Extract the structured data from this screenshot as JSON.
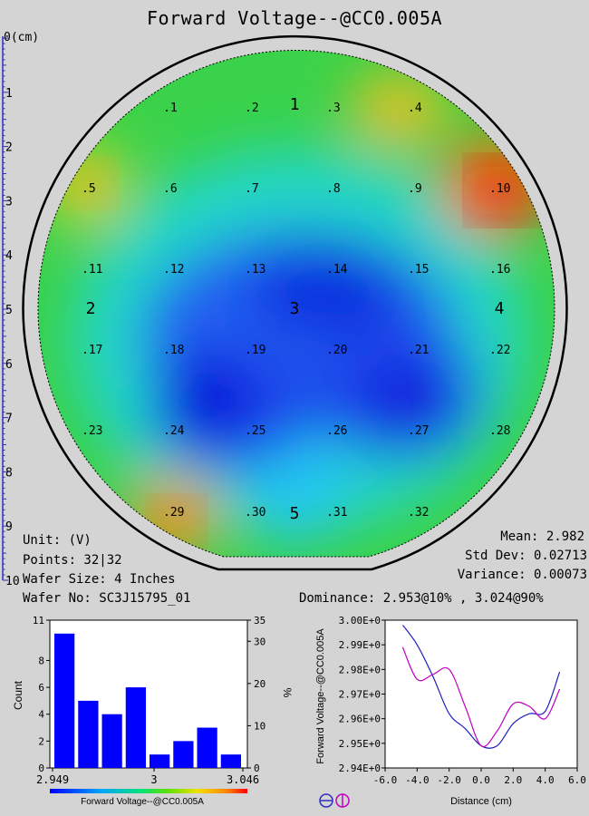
{
  "title": "Forward Voltage--@CC0.005A",
  "ruler": {
    "unit_label": "0(cm)",
    "ticks": [
      "1",
      "2",
      "3",
      "4",
      "5",
      "6",
      "7",
      "8",
      "9",
      "10"
    ]
  },
  "wafer_map": {
    "points": [
      {
        "id": ".1",
        "col": 2,
        "row": 1
      },
      {
        "id": ".2",
        "col": 3,
        "row": 1
      },
      {
        "id": ".3",
        "col": 4,
        "row": 1
      },
      {
        "id": ".4",
        "col": 5,
        "row": 1
      },
      {
        "id": ".5",
        "col": 1,
        "row": 2
      },
      {
        "id": ".6",
        "col": 2,
        "row": 2
      },
      {
        "id": ".7",
        "col": 3,
        "row": 2
      },
      {
        "id": ".8",
        "col": 4,
        "row": 2
      },
      {
        "id": ".9",
        "col": 5,
        "row": 2
      },
      {
        "id": ".10",
        "col": 6,
        "row": 2
      },
      {
        "id": ".11",
        "col": 1,
        "row": 3
      },
      {
        "id": ".12",
        "col": 2,
        "row": 3
      },
      {
        "id": ".13",
        "col": 3,
        "row": 3
      },
      {
        "id": ".14",
        "col": 4,
        "row": 3
      },
      {
        "id": ".15",
        "col": 5,
        "row": 3
      },
      {
        "id": ".16",
        "col": 6,
        "row": 3
      },
      {
        "id": ".17",
        "col": 1,
        "row": 4
      },
      {
        "id": ".18",
        "col": 2,
        "row": 4
      },
      {
        "id": ".19",
        "col": 3,
        "row": 4
      },
      {
        "id": ".20",
        "col": 4,
        "row": 4
      },
      {
        "id": ".21",
        "col": 5,
        "row": 4
      },
      {
        "id": ".22",
        "col": 6,
        "row": 4
      },
      {
        "id": ".23",
        "col": 1,
        "row": 5
      },
      {
        "id": ".24",
        "col": 2,
        "row": 5
      },
      {
        "id": ".25",
        "col": 3,
        "row": 5
      },
      {
        "id": ".26",
        "col": 4,
        "row": 5
      },
      {
        "id": ".27",
        "col": 5,
        "row": 5
      },
      {
        "id": ".28",
        "col": 6,
        "row": 5
      },
      {
        "id": ".29",
        "col": 2,
        "row": 6
      },
      {
        "id": ".30",
        "col": 3,
        "row": 6
      },
      {
        "id": ".31",
        "col": 4,
        "row": 6
      },
      {
        "id": ".32",
        "col": 5,
        "row": 6
      }
    ],
    "regions": [
      "1",
      "2",
      "3",
      "4",
      "5"
    ]
  },
  "stats_left": {
    "unit": "Unit: (V)",
    "points": "Points: 32|32",
    "wafer_size": "Wafer Size: 4 Inches",
    "wafer_no": "Wafer No: SC3J15795_01"
  },
  "stats_right": {
    "mean": "Mean: 2.982",
    "std_dev": "Std Dev: 0.02713",
    "variance": "Variance: 0.00073",
    "dominance": "Dominance: 2.953@10% , 3.024@90%"
  },
  "colors": {
    "background": "#d4d4d4",
    "bar": "#0000ff",
    "line_1": "#2020c0",
    "line_2": "#c000c0",
    "heat_low": "#0010e0",
    "heat_high": "#e00000"
  },
  "chart_data": [
    {
      "type": "bar",
      "categories": [
        "bin1",
        "bin2",
        "bin3",
        "bin4",
        "bin5",
        "bin6",
        "bin7",
        "bin8"
      ],
      "values": [
        10,
        5,
        4,
        6,
        1,
        2,
        3,
        1
      ],
      "xlabel": "",
      "ylabel": "Count",
      "y2label": "%",
      "x_ticks": [
        "2.949",
        "3",
        "3.046"
      ],
      "y_ticks": [
        "0",
        "2",
        "4",
        "6",
        "8",
        "11"
      ],
      "y2_ticks": [
        "0",
        "10",
        "20",
        "30",
        "35"
      ],
      "ylim": [
        0,
        11
      ],
      "colorbar_label": "Forward Voltage--@CC0.005A"
    },
    {
      "type": "line",
      "xlabel": "Distance (cm)",
      "ylabel": "Forward Voltage--@CC0.005A",
      "xlim": [
        -6,
        6
      ],
      "ylim": [
        2.94,
        3.0
      ],
      "x_ticks": [
        "-6.0",
        "-4.0",
        "-2.0",
        "0.0",
        "2.0",
        "4.0",
        "6.0"
      ],
      "y_ticks": [
        "2.94E+0",
        "2.95E+0",
        "2.96E+0",
        "2.97E+0",
        "2.98E+0",
        "2.99E+0",
        "3.00E+0"
      ],
      "series": [
        {
          "x": [
            -4.9,
            -4.0,
            -3.0,
            -2.0,
            -1.0,
            0.0,
            1.0,
            2.0,
            3.0,
            4.0,
            4.9
          ],
          "y": [
            2.998,
            2.99,
            2.977,
            2.962,
            2.956,
            2.949,
            2.949,
            2.958,
            2.962,
            2.963,
            2.979
          ]
        },
        {
          "x": [
            -4.9,
            -4.0,
            -3.0,
            -2.0,
            -1.0,
            0.0,
            1.0,
            2.0,
            3.0,
            4.0,
            4.9
          ],
          "y": [
            2.989,
            2.976,
            2.978,
            2.98,
            2.965,
            2.949,
            2.955,
            2.966,
            2.965,
            2.96,
            2.972
          ]
        }
      ],
      "legend_icons": [
        "horizontal-cut-icon",
        "vertical-cut-icon"
      ]
    }
  ]
}
